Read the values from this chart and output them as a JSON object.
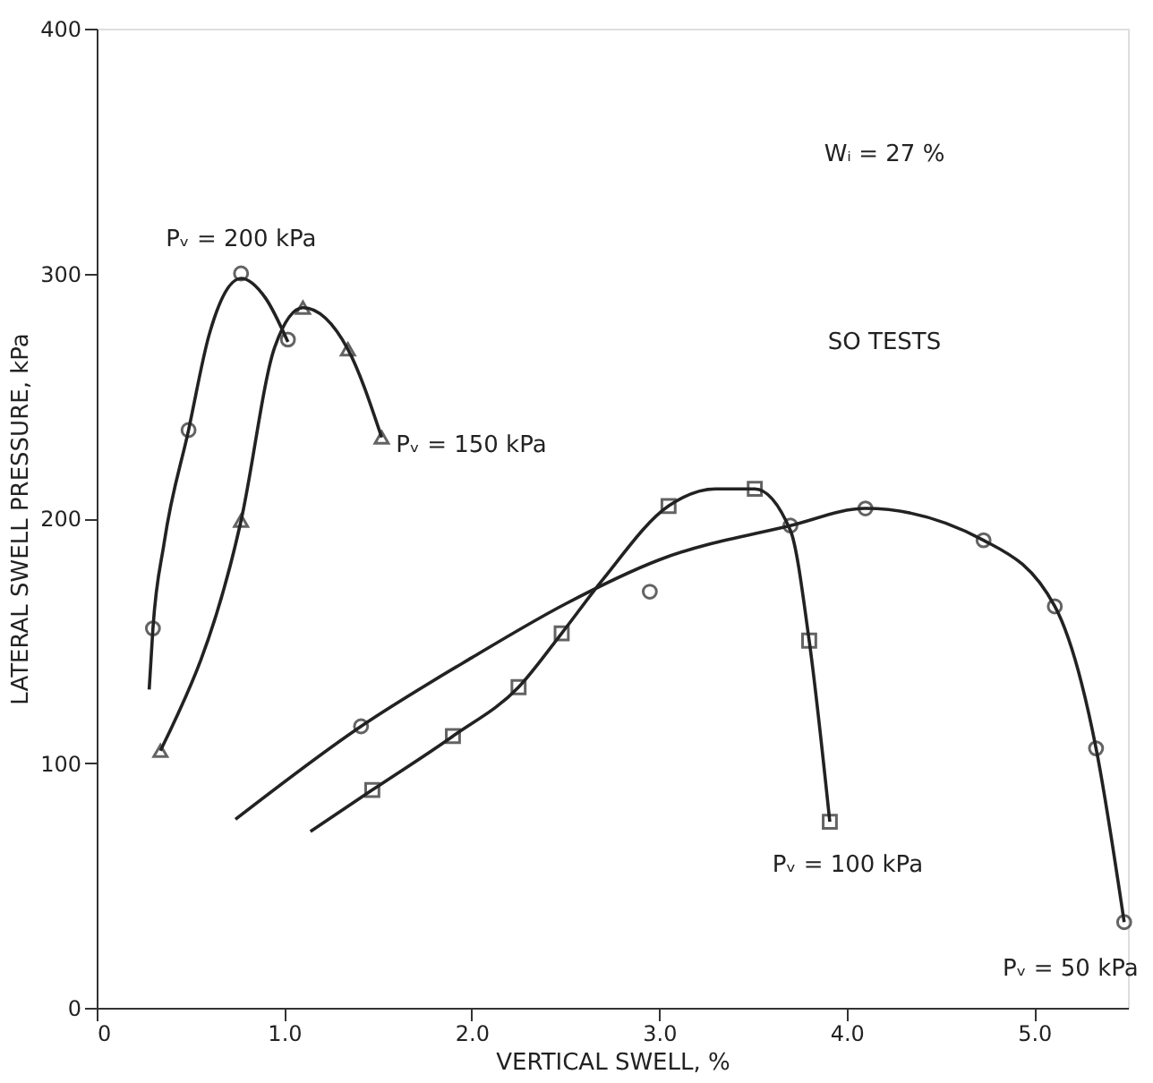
{
  "chart_data": {
    "type": "line",
    "xlabel": "VERTICAL SWELL, %",
    "ylabel": "LATERAL SWELL PRESSURE, kPa",
    "xlim": [
      0,
      5.5
    ],
    "xticks": [
      0,
      {
        "value": 1,
        "label": "1.0"
      },
      {
        "value": 2,
        "label": "2.0"
      },
      {
        "value": 3,
        "label": "3.0"
      },
      {
        "value": 4,
        "label": "4.0"
      },
      {
        "value": 5,
        "label": "5.0"
      }
    ],
    "ylim": [
      0,
      400
    ],
    "yticks": [
      0,
      100,
      200,
      300,
      400
    ],
    "series": [
      {
        "name": "Pᵥ = 200 kPa",
        "marker": "none",
        "color": "#222222",
        "x": [
          0.28,
          0.3,
          0.36,
          0.49,
          0.6,
          0.77,
          0.9,
          1.02
        ],
        "values": [
          130,
          155,
          190,
          236,
          275,
          298,
          290,
          272
        ]
      },
      {
        "type": "scatter",
        "marker": "circle",
        "color": "#222222",
        "x": [
          0.3,
          0.49,
          0.77,
          1.02
        ],
        "values": [
          155,
          236,
          300,
          273
        ]
      },
      {
        "name": "Pᵥ = 150 kPa",
        "marker": "none",
        "color": "#222222",
        "x": [
          0.34,
          0.77,
          0.95,
          1.1,
          1.34,
          1.52
        ],
        "values": [
          105,
          199,
          270,
          286,
          269,
          233
        ]
      },
      {
        "type": "scatter",
        "marker": "triangle",
        "color": "#222222",
        "x": [
          0.34,
          0.77,
          1.1,
          1.34,
          1.52
        ],
        "values": [
          105,
          199,
          286,
          269,
          233
        ]
      },
      {
        "name": "Pᵥ = 100 kPa",
        "marker": "none",
        "color": "#222222",
        "x": [
          1.14,
          1.47,
          1.9,
          2.25,
          2.48,
          2.7,
          3.05,
          3.3,
          3.51,
          3.7,
          3.8,
          3.91
        ],
        "values": [
          72,
          89,
          111,
          131,
          153,
          175,
          205,
          212,
          212,
          195,
          150,
          76
        ]
      },
      {
        "type": "scatter",
        "marker": "square",
        "color": "#222222",
        "x": [
          1.47,
          1.9,
          2.25,
          2.48,
          3.05,
          3.51,
          3.8,
          3.91
        ],
        "values": [
          89,
          111,
          131,
          153,
          205,
          212,
          150,
          76
        ]
      },
      {
        "name": "Pᵥ = 50 kPa",
        "marker": "none",
        "color": "#222222",
        "x": [
          0.74,
          1.41,
          2.0,
          2.5,
          3.0,
          3.7,
          4.1,
          4.73,
          5.11,
          5.33,
          5.48
        ],
        "values": [
          77,
          115,
          143,
          165,
          183,
          197,
          204,
          191,
          164,
          106,
          35
        ]
      },
      {
        "type": "scatter",
        "marker": "circle",
        "color": "#222222",
        "x": [
          1.41,
          2.95,
          3.7,
          4.1,
          4.73,
          5.11,
          5.33,
          5.48
        ],
        "values": [
          115,
          170,
          197,
          204,
          191,
          164,
          106,
          35
        ]
      }
    ],
    "annotations": [
      "Wᵢ = 27 %",
      "SO TESTS"
    ]
  }
}
